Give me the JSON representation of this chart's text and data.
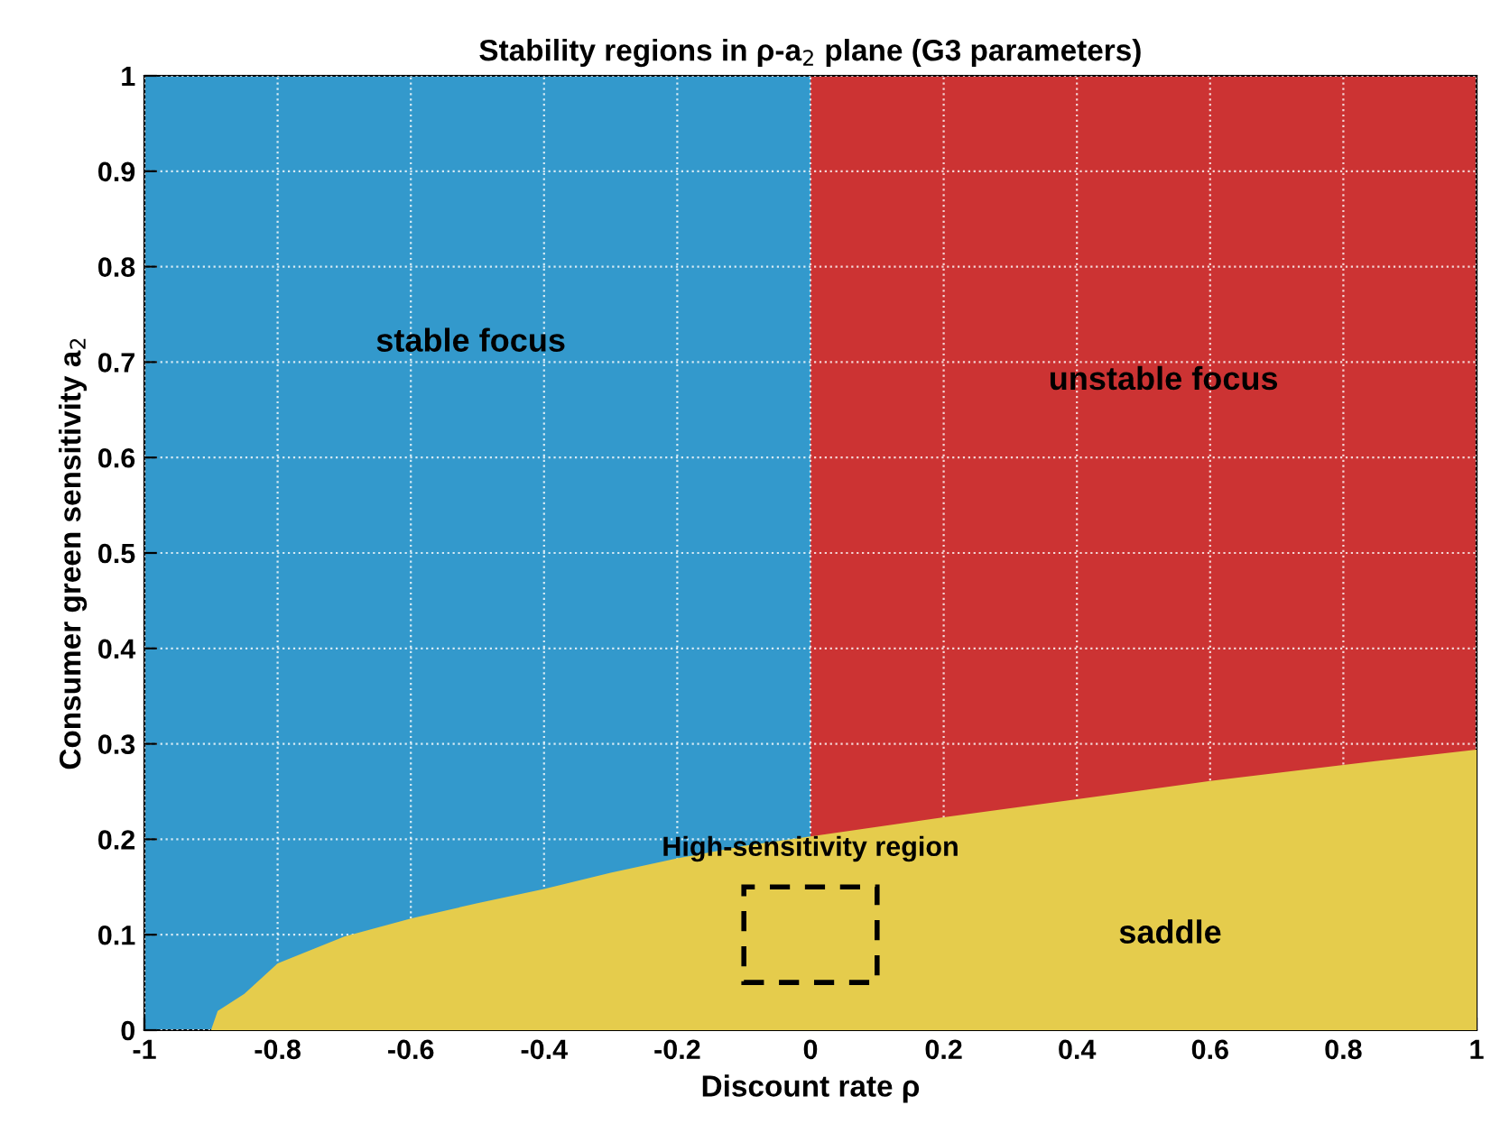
{
  "chart_data": {
    "type": "area",
    "title": "Stability regions in ρ-a$_{2}$ plane (G3 parameters)",
    "xlabel": "Discount rate ρ",
    "ylabel": "Consumer green sensitivity a$_{2}$",
    "xlim": [
      -1,
      1
    ],
    "ylim": [
      0,
      1
    ],
    "xticks": [
      -1,
      -0.8,
      -0.6,
      -0.4,
      -0.2,
      0,
      0.2,
      0.4,
      0.6,
      0.8,
      1
    ],
    "yticks": [
      0,
      0.1,
      0.2,
      0.3,
      0.4,
      0.5,
      0.6,
      0.7,
      0.8,
      0.9,
      1
    ],
    "grid": true,
    "series": [
      {
        "color": "#3399cc",
        "x": [
          -1,
          0
        ],
        "values": [
          1,
          1
        ]
      },
      {
        "color": "#cc3333",
        "x": [
          0,
          1
        ],
        "values": [
          1,
          1
        ]
      },
      {
        "color": "#e5cc4c",
        "x": [
          -0.9,
          -0.89,
          -0.85,
          -0.8,
          -0.7,
          -0.6,
          -0.5,
          -0.4,
          -0.3,
          -0.2,
          -0.1,
          0,
          0.2,
          0.4,
          0.6,
          0.8,
          1
        ],
        "values": [
          0,
          0.02,
          0.038,
          0.07,
          0.098,
          0.117,
          0.133,
          0.148,
          0.165,
          0.18,
          0.193,
          0.203,
          0.223,
          0.242,
          0.261,
          0.278,
          0.294
        ]
      }
    ],
    "annotations": [
      "stable focus",
      "unstable focus",
      "saddle",
      "High-sensitivity region"
    ]
  }
}
